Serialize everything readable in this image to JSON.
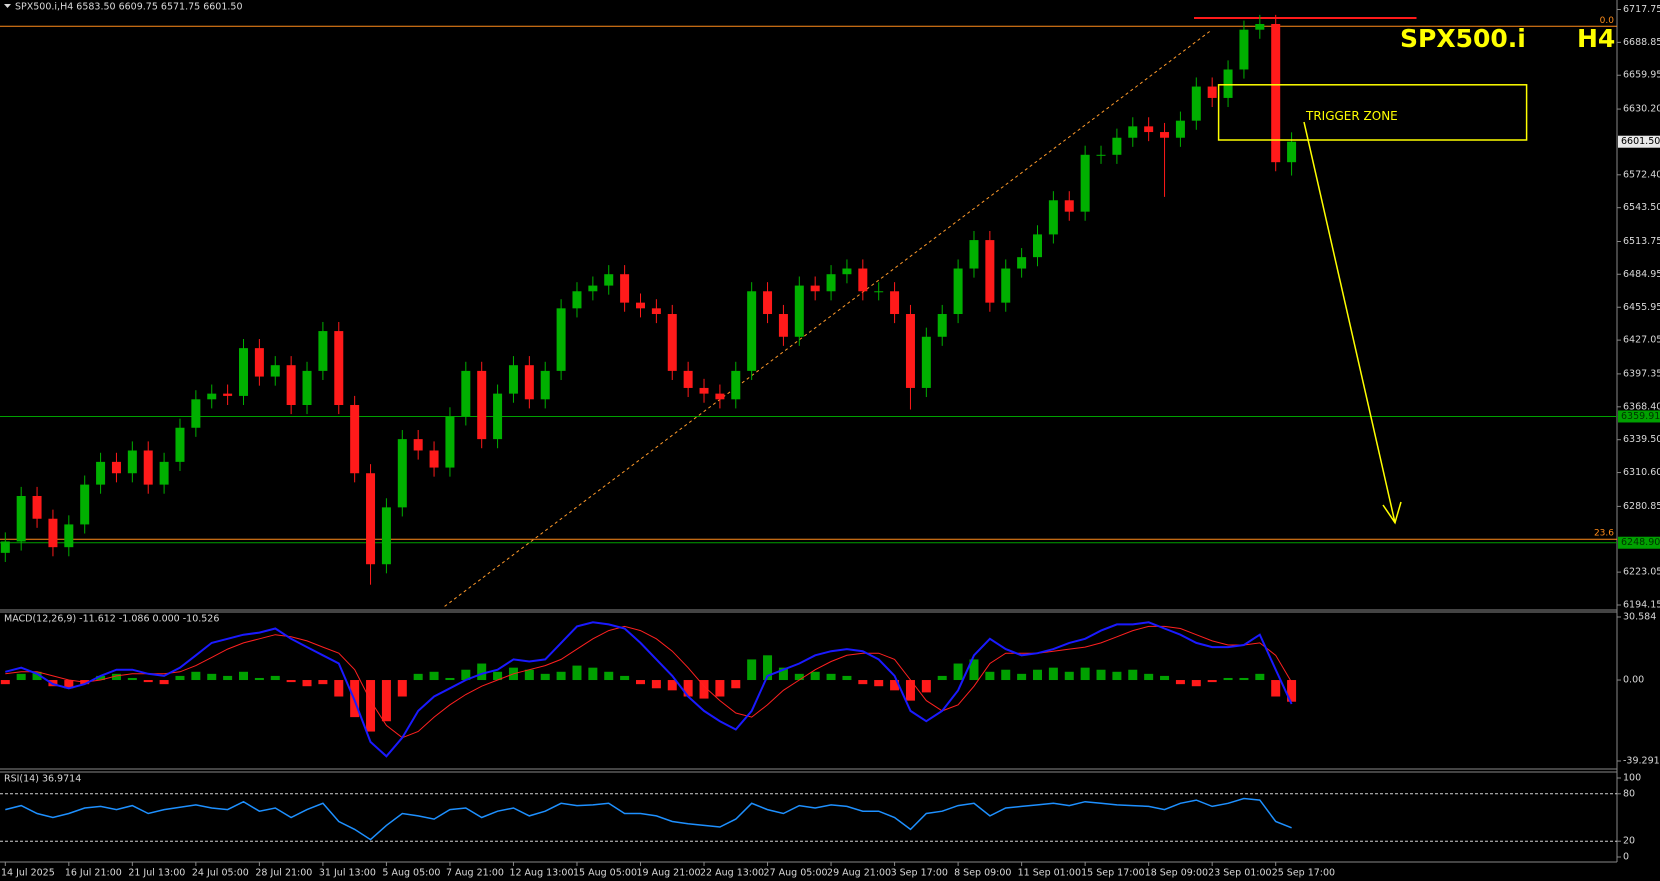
{
  "chart_data": [
    {
      "type": "candlestick",
      "title": "SPX500.i,H4 6583.50 6609.75 6571.75 6601.50",
      "symbol_label": "SPX500.i",
      "timeframe_label": "H4",
      "annotation": "TRIGGER ZONE",
      "up_color": "#00b000",
      "down_color": "#ff1a1a",
      "categories": [
        "14 Jul 2025",
        null,
        null,
        null,
        "16 Jul 21:00",
        null,
        null,
        null,
        "21 Jul 13:00",
        null,
        null,
        null,
        "24 Jul 05:00",
        null,
        null,
        null,
        "28 Jul 21:00",
        null,
        null,
        null,
        "31 Jul 13:00",
        null,
        null,
        null,
        "5 Aug 05:00",
        null,
        null,
        null,
        "7 Aug 21:00",
        null,
        null,
        null,
        "12 Aug 13:00",
        null,
        null,
        null,
        "15 Aug 05:00",
        null,
        null,
        null,
        "19 Aug 21:00",
        null,
        null,
        null,
        "22 Aug 13:00",
        null,
        null,
        null,
        "27 Aug 05:00",
        null,
        null,
        null,
        "29 Aug 21:00",
        null,
        null,
        null,
        "3 Sep 17:00",
        null,
        null,
        null,
        "8 Sep 09:00",
        null,
        null,
        null,
        "11 Sep 01:00",
        null,
        null,
        null,
        "15 Sep 17:00",
        null,
        null,
        null,
        "18 Sep 09:00",
        null,
        null,
        null,
        "23 Sep 01:00",
        null,
        null,
        null,
        "25 Sep 17:00",
        null
      ],
      "open": [
        6240,
        6250,
        6290,
        6270,
        6245,
        6265,
        6300,
        6320,
        6310,
        6330,
        6300,
        6320,
        6350,
        6375,
        6380,
        6378,
        6420,
        6395,
        6405,
        6370,
        6400,
        6435,
        6370,
        6310,
        6230,
        6280,
        6340,
        6330,
        6315,
        6360,
        6400,
        6340,
        6380,
        6405,
        6375,
        6400,
        6455,
        6470,
        6475,
        6485,
        6460,
        6455,
        6450,
        6400,
        6385,
        6380,
        6375,
        6400,
        6470,
        6450,
        6430,
        6475,
        6470,
        6485,
        6490,
        6470,
        6470,
        6450,
        6385,
        6430,
        6450,
        6490,
        6515,
        6460,
        6490,
        6500,
        6520,
        6550,
        6540,
        6590,
        6590,
        6605,
        6615,
        6610,
        6605,
        6620,
        6650,
        6640,
        6665,
        6700,
        6705,
        6583.5
      ],
      "high": [
        6258,
        6298,
        6298,
        6278,
        6273,
        6308,
        6328,
        6328,
        6338,
        6338,
        6328,
        6358,
        6383,
        6388,
        6388,
        6428,
        6428,
        6413,
        6413,
        6408,
        6443,
        6443,
        6378,
        6318,
        6288,
        6348,
        6348,
        6338,
        6368,
        6408,
        6408,
        6388,
        6413,
        6413,
        6408,
        6463,
        6478,
        6483,
        6493,
        6493,
        6468,
        6463,
        6458,
        6408,
        6393,
        6388,
        6408,
        6478,
        6478,
        6458,
        6483,
        6483,
        6493,
        6498,
        6498,
        6478,
        6478,
        6458,
        6438,
        6458,
        6498,
        6523,
        6523,
        6498,
        6508,
        6528,
        6558,
        6558,
        6598,
        6598,
        6613,
        6623,
        6623,
        6618,
        6628,
        6658,
        6658,
        6673,
        6708,
        6713,
        6713,
        6609.75
      ],
      "low": [
        6232,
        6242,
        6262,
        6237,
        6237,
        6257,
        6292,
        6302,
        6302,
        6292,
        6292,
        6312,
        6342,
        6367,
        6370,
        6370,
        6387,
        6387,
        6362,
        6362,
        6392,
        6362,
        6302,
        6212,
        6222,
        6272,
        6322,
        6307,
        6307,
        6352,
        6332,
        6332,
        6372,
        6367,
        6367,
        6392,
        6447,
        6462,
        6467,
        6452,
        6447,
        6442,
        6392,
        6377,
        6372,
        6367,
        6367,
        6392,
        6442,
        6422,
        6422,
        6462,
        6462,
        6477,
        6462,
        6462,
        6442,
        6366,
        6377,
        6422,
        6442,
        6482,
        6452,
        6452,
        6482,
        6492,
        6512,
        6532,
        6532,
        6582,
        6582,
        6597,
        6602,
        6553,
        6597,
        6612,
        6632,
        6632,
        6657,
        6692,
        6575.5,
        6571.75
      ],
      "close": [
        6250,
        6290,
        6270,
        6245,
        6265,
        6300,
        6320,
        6310,
        6330,
        6300,
        6320,
        6350,
        6375,
        6380,
        6378,
        6420,
        6395,
        6405,
        6370,
        6400,
        6435,
        6370,
        6310,
        6230,
        6280,
        6340,
        6330,
        6315,
        6360,
        6400,
        6340,
        6380,
        6405,
        6375,
        6400,
        6455,
        6470,
        6475,
        6485,
        6460,
        6455,
        6450,
        6400,
        6385,
        6380,
        6375,
        6400,
        6470,
        6450,
        6430,
        6475,
        6470,
        6485,
        6490,
        6470,
        6470,
        6450,
        6385,
        6430,
        6450,
        6490,
        6515,
        6460,
        6490,
        6500,
        6520,
        6550,
        6540,
        6590,
        6590,
        6605,
        6615,
        6610,
        6605,
        6620,
        6650,
        6640,
        6665,
        6700,
        6705,
        6583.5,
        6601.5
      ],
      "ylim": [
        6194.15,
        6717.75
      ],
      "yticks": [
        6717.75,
        6688.85,
        6659.95,
        {
          "value": 6630.2,
          "label": "6630.20"
        },
        {
          "value": 6572.4,
          "label": "6572.40"
        },
        {
          "value": 6543.5,
          "label": "6543.50"
        },
        6513.75,
        6484.95,
        6455.95,
        6427.05,
        6397.35,
        {
          "value": 6368.4,
          "label": "6368.40"
        },
        {
          "value": 6339.5,
          "label": "6339.50"
        },
        {
          "value": 6310.6,
          "label": "6310.60"
        },
        6280.85,
        6223.05,
        6194.15
      ],
      "last_price": {
        "value": 6601.5,
        "label": "6601.50"
      },
      "levels": [
        {
          "value": 6703,
          "label": "0.0",
          "color": "#ff8c1a",
          "boxed": false
        },
        {
          "value": 6252,
          "label": "23.6",
          "color": "#ff8c1a",
          "boxed": false
        },
        {
          "value": 6359.91,
          "label": "6359.91",
          "color": "#00a000",
          "boxed": true
        },
        {
          "value": 6248.9,
          "label": "6248.90",
          "color": "#00a000",
          "boxed": true
        }
      ]
    },
    {
      "type": "macd",
      "title": "MACD(12,26,9) -11.612 -1.086 0.000 -10.526",
      "histogram": [
        -2,
        3,
        4,
        -3,
        -4,
        -2,
        2,
        3,
        1,
        -1,
        -2,
        2,
        4,
        3,
        2,
        4,
        1,
        2,
        -1,
        -3,
        -2,
        -8,
        -18,
        -25,
        -20,
        -8,
        3,
        4,
        1,
        5,
        8,
        4,
        6,
        5,
        3,
        4,
        7,
        6,
        4,
        2,
        -2,
        -4,
        -5,
        -8,
        -9,
        -8,
        -4,
        10,
        12,
        6,
        3,
        4,
        3,
        2,
        -2,
        -3,
        -5,
        -10,
        -6,
        2,
        8,
        10,
        4,
        5,
        3,
        5,
        6,
        4,
        6,
        5,
        4,
        5,
        3,
        2,
        -2,
        -3,
        -1,
        1,
        1,
        3,
        -8,
        -10.526
      ],
      "macd": [
        4,
        6,
        3,
        -2,
        -4,
        -2,
        2,
        5,
        5,
        3,
        2,
        6,
        12,
        18,
        20,
        22,
        23,
        25,
        20,
        16,
        12,
        8,
        -10,
        -30,
        -37,
        -28,
        -15,
        -8,
        -4,
        0,
        3,
        5,
        10,
        9,
        10,
        18,
        26,
        28,
        27,
        25,
        18,
        10,
        2,
        -8,
        -15,
        -20,
        -24,
        -15,
        2,
        5,
        8,
        12,
        14,
        15,
        14,
        10,
        2,
        -15,
        -20,
        -15,
        -5,
        12,
        20,
        15,
        12,
        13,
        15,
        18,
        20,
        24,
        27,
        27,
        28,
        25,
        22,
        18,
        16,
        16,
        17,
        22,
        5,
        -11.612
      ],
      "signal": [
        3,
        4,
        4,
        2,
        0,
        -1,
        0,
        2,
        3,
        3,
        3,
        4,
        7,
        11,
        15,
        18,
        20,
        22,
        21,
        19,
        16,
        13,
        5,
        -10,
        -22,
        -28,
        -25,
        -18,
        -12,
        -7,
        -3,
        0,
        3,
        5,
        7,
        10,
        15,
        20,
        24,
        26,
        24,
        20,
        14,
        6,
        -3,
        -10,
        -16,
        -18,
        -12,
        -5,
        0,
        5,
        9,
        12,
        13,
        13,
        10,
        0,
        -10,
        -15,
        -12,
        -3,
        8,
        13,
        13,
        13,
        14,
        15,
        16,
        18,
        21,
        24,
        26,
        26,
        25,
        22,
        19,
        17,
        17,
        18,
        12,
        -1.086
      ],
      "macd_color": "#1a1aff",
      "signal_color": "#ff2020",
      "up_color": "#00a000",
      "down_color": "#ff1a1a",
      "ylim": [
        -39.291,
        30.584
      ],
      "yticks": [
        30.584,
        {
          "value": 0,
          "label": "0.00"
        },
        -39.291
      ]
    },
    {
      "type": "line",
      "title": "RSI(14) 36.9714",
      "values": [
        60,
        65,
        55,
        50,
        55,
        62,
        64,
        60,
        65,
        55,
        60,
        63,
        66,
        62,
        60,
        70,
        58,
        62,
        50,
        60,
        68,
        45,
        35,
        22,
        40,
        55,
        52,
        48,
        60,
        62,
        50,
        58,
        62,
        52,
        58,
        68,
        65,
        66,
        68,
        55,
        55,
        52,
        45,
        42,
        40,
        38,
        48,
        68,
        60,
        55,
        65,
        62,
        66,
        64,
        58,
        58,
        50,
        35,
        55,
        58,
        65,
        68,
        52,
        62,
        64,
        66,
        68,
        65,
        70,
        68,
        66,
        65,
        64,
        60,
        68,
        72,
        64,
        68,
        74,
        72,
        45,
        36.9714
      ],
      "color": "#1e90ff",
      "ylim": [
        0,
        100
      ],
      "yticks": [
        100,
        80,
        20,
        0
      ],
      "levels": [
        80,
        20
      ]
    }
  ]
}
